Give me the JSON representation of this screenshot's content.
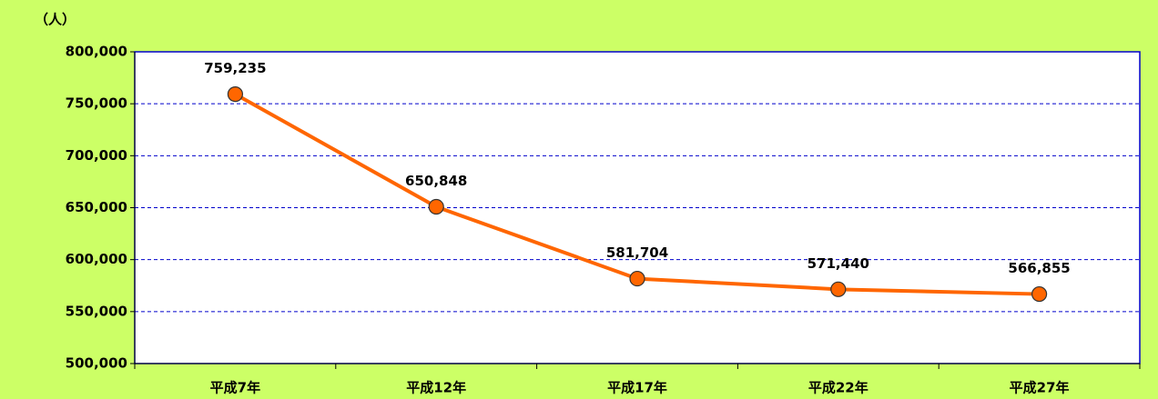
{
  "chart_data": {
    "type": "line",
    "y_unit_label": "（人）",
    "categories": [
      "平成7年",
      "平成12年",
      "平成17年",
      "平成22年",
      "平成27年"
    ],
    "series": [
      {
        "name": null,
        "color": "#ff6600",
        "values": [
          759235,
          650848,
          581704,
          571440,
          566855
        ],
        "value_labels": [
          "759,235",
          "650,848",
          "581,704",
          "571,440",
          "566,855"
        ]
      }
    ],
    "ylim": [
      500000,
      800000
    ],
    "yticks": [
      {
        "value": 500000,
        "label": "500,000"
      },
      {
        "value": 550000,
        "label": "550,000"
      },
      {
        "value": 600000,
        "label": "600,000"
      },
      {
        "value": 650000,
        "label": "650,000"
      },
      {
        "value": 700000,
        "label": "700,000"
      },
      {
        "value": 750000,
        "label": "750,000"
      },
      {
        "value": 800000,
        "label": "800,000"
      }
    ],
    "grid": true
  }
}
